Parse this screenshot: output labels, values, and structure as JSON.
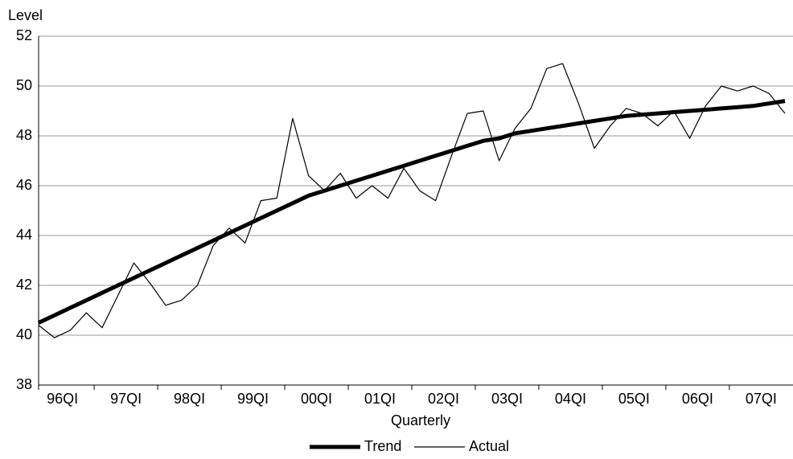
{
  "chart_data": {
    "type": "line",
    "y_axis_label": "Level",
    "x_axis_label": "Quarterly",
    "categories": [
      "96QI",
      null,
      null,
      null,
      "97QI",
      null,
      null,
      null,
      "98QI",
      null,
      null,
      null,
      "99QI",
      null,
      null,
      null,
      "00QI",
      null,
      null,
      null,
      "01QI",
      null,
      null,
      null,
      "02QI",
      null,
      null,
      null,
      "03QI",
      null,
      null,
      null,
      "04QI",
      null,
      null,
      null,
      "05QI",
      null,
      null,
      null,
      "06QI",
      null,
      null,
      null,
      "07QI",
      null,
      null,
      null
    ],
    "series": [
      {
        "name": "Trend",
        "color": "#000000",
        "width": 5,
        "values": [
          40.5,
          40.8,
          41.1,
          41.4,
          41.7,
          42.0,
          42.3,
          42.6,
          42.9,
          43.2,
          43.5,
          43.8,
          44.1,
          44.4,
          44.7,
          45.0,
          45.3,
          45.6,
          45.8,
          46.0,
          46.2,
          46.4,
          46.6,
          46.8,
          47.0,
          47.2,
          47.4,
          47.6,
          47.8,
          47.9,
          48.1,
          48.2,
          48.3,
          48.4,
          48.5,
          48.6,
          48.7,
          48.8,
          48.85,
          48.9,
          48.95,
          49.0,
          49.05,
          49.1,
          49.15,
          49.2,
          49.3,
          49.4
        ]
      },
      {
        "name": "Actual",
        "color": "#000000",
        "width": 1.2,
        "values": [
          40.4,
          39.9,
          40.2,
          40.9,
          40.3,
          41.6,
          42.9,
          42.1,
          41.2,
          41.4,
          42.0,
          43.6,
          44.3,
          43.7,
          45.4,
          45.5,
          48.7,
          46.4,
          45.8,
          46.5,
          45.5,
          46.0,
          45.5,
          46.7,
          45.8,
          45.4,
          47.2,
          48.9,
          49.0,
          47.0,
          48.3,
          49.1,
          50.7,
          50.9,
          49.3,
          47.5,
          48.4,
          49.1,
          48.9,
          48.4,
          49.0,
          47.9,
          49.2,
          50.0,
          49.8,
          50.0,
          49.7,
          48.9
        ]
      }
    ],
    "ylim": [
      38,
      52
    ],
    "yticks": [
      38,
      40,
      42,
      44,
      46,
      48,
      50,
      52
    ],
    "grid": true
  }
}
